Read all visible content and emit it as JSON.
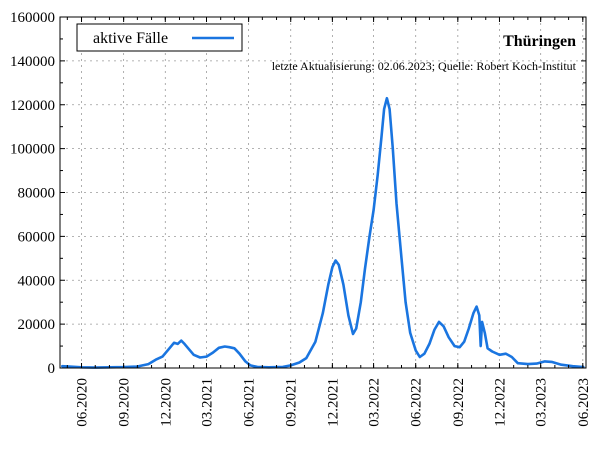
{
  "chart_data": {
    "type": "line",
    "title": "Thüringen",
    "subtitle": "letzte Aktualisierung: 02.06.2023; Quelle: Robert Koch-Institut",
    "legend": {
      "placement": "top-left",
      "entries": [
        "aktive Fälle"
      ]
    },
    "grid": true,
    "series_color": "#1a75e0",
    "xlim": [
      "2020-04-15",
      "2023-06-08"
    ],
    "ylim": [
      0,
      160000
    ],
    "x_ticks": [
      {
        "date": "2020-06-01",
        "label": "06.2020"
      },
      {
        "date": "2020-09-01",
        "label": "09.2020"
      },
      {
        "date": "2020-12-01",
        "label": "12.2020"
      },
      {
        "date": "2021-03-01",
        "label": "03.2021"
      },
      {
        "date": "2021-06-01",
        "label": "06.2021"
      },
      {
        "date": "2021-09-01",
        "label": "09.2021"
      },
      {
        "date": "2021-12-01",
        "label": "12.2021"
      },
      {
        "date": "2022-03-01",
        "label": "03.2022"
      },
      {
        "date": "2022-06-01",
        "label": "06.2022"
      },
      {
        "date": "2022-09-01",
        "label": "09.2022"
      },
      {
        "date": "2022-12-01",
        "label": "12.2022"
      },
      {
        "date": "2023-03-01",
        "label": "03.2023"
      },
      {
        "date": "2023-06-01",
        "label": "06.2023"
      }
    ],
    "y_ticks": [
      {
        "value": 0,
        "label": "0"
      },
      {
        "value": 20000,
        "label": "20000"
      },
      {
        "value": 40000,
        "label": "40000"
      },
      {
        "value": 60000,
        "label": "60000"
      },
      {
        "value": 80000,
        "label": "80000"
      },
      {
        "value": 100000,
        "label": "100000"
      },
      {
        "value": 120000,
        "label": "120000"
      },
      {
        "value": 140000,
        "label": "140000"
      },
      {
        "value": 160000,
        "label": "160000"
      }
    ],
    "series": [
      {
        "name": "aktive Fälle",
        "points": [
          [
            "2020-04-20",
            800
          ],
          [
            "2020-05-10",
            600
          ],
          [
            "2020-06-01",
            300
          ],
          [
            "2020-07-01",
            200
          ],
          [
            "2020-08-01",
            300
          ],
          [
            "2020-09-01",
            400
          ],
          [
            "2020-10-01",
            700
          ],
          [
            "2020-10-25",
            1800
          ],
          [
            "2020-11-10",
            3800
          ],
          [
            "2020-11-25",
            5200
          ],
          [
            "2020-12-08",
            8500
          ],
          [
            "2020-12-20",
            11500
          ],
          [
            "2020-12-28",
            11000
          ],
          [
            "2021-01-05",
            12500
          ],
          [
            "2021-01-12",
            11000
          ],
          [
            "2021-01-20",
            9000
          ],
          [
            "2021-02-01",
            6000
          ],
          [
            "2021-02-15",
            4800
          ],
          [
            "2021-03-01",
            5200
          ],
          [
            "2021-03-15",
            7000
          ],
          [
            "2021-03-28",
            9200
          ],
          [
            "2021-04-10",
            9800
          ],
          [
            "2021-04-20",
            9500
          ],
          [
            "2021-05-01",
            9000
          ],
          [
            "2021-05-12",
            6500
          ],
          [
            "2021-05-25",
            3000
          ],
          [
            "2021-06-05",
            1200
          ],
          [
            "2021-06-20",
            500
          ],
          [
            "2021-07-15",
            300
          ],
          [
            "2021-08-15",
            500
          ],
          [
            "2021-09-01",
            1200
          ],
          [
            "2021-09-20",
            2500
          ],
          [
            "2021-10-05",
            4500
          ],
          [
            "2021-10-25",
            12000
          ],
          [
            "2021-11-10",
            25000
          ],
          [
            "2021-11-22",
            38000
          ],
          [
            "2021-12-01",
            46000
          ],
          [
            "2021-12-08",
            49000
          ],
          [
            "2021-12-15",
            47000
          ],
          [
            "2021-12-25",
            38000
          ],
          [
            "2022-01-05",
            24000
          ],
          [
            "2022-01-15",
            15500
          ],
          [
            "2022-01-22",
            18000
          ],
          [
            "2022-02-01",
            30000
          ],
          [
            "2022-02-10",
            45000
          ],
          [
            "2022-02-20",
            60000
          ],
          [
            "2022-03-01",
            72000
          ],
          [
            "2022-03-10",
            88000
          ],
          [
            "2022-03-18",
            105000
          ],
          [
            "2022-03-24",
            118000
          ],
          [
            "2022-03-30",
            123000
          ],
          [
            "2022-04-05",
            118000
          ],
          [
            "2022-04-12",
            100000
          ],
          [
            "2022-04-20",
            75000
          ],
          [
            "2022-05-01",
            50000
          ],
          [
            "2022-05-10",
            30000
          ],
          [
            "2022-05-20",
            16000
          ],
          [
            "2022-06-01",
            8000
          ],
          [
            "2022-06-10",
            5000
          ],
          [
            "2022-06-20",
            6500
          ],
          [
            "2022-07-01",
            11000
          ],
          [
            "2022-07-12",
            17500
          ],
          [
            "2022-07-22",
            21000
          ],
          [
            "2022-08-01",
            19000
          ],
          [
            "2022-08-12",
            14000
          ],
          [
            "2022-08-25",
            10000
          ],
          [
            "2022-09-05",
            9500
          ],
          [
            "2022-09-15",
            12000
          ],
          [
            "2022-09-25",
            18000
          ],
          [
            "2022-10-05",
            25000
          ],
          [
            "2022-10-12",
            28000
          ],
          [
            "2022-10-18",
            24000
          ],
          [
            "2022-10-21",
            10000
          ],
          [
            "2022-10-24",
            21000
          ],
          [
            "2022-10-30",
            16000
          ],
          [
            "2022-11-05",
            9000
          ],
          [
            "2022-11-15",
            7500
          ],
          [
            "2022-12-01",
            6000
          ],
          [
            "2022-12-15",
            6500
          ],
          [
            "2022-12-28",
            5000
          ],
          [
            "2023-01-10",
            2200
          ],
          [
            "2023-02-01",
            1800
          ],
          [
            "2023-02-20",
            2000
          ],
          [
            "2023-03-10",
            3000
          ],
          [
            "2023-03-25",
            2800
          ],
          [
            "2023-04-15",
            1500
          ],
          [
            "2023-05-10",
            800
          ],
          [
            "2023-06-02",
            400
          ]
        ]
      }
    ]
  }
}
